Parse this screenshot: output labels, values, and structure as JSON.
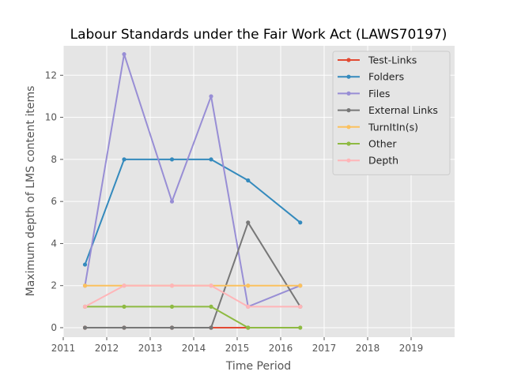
{
  "chart_data": {
    "type": "line",
    "title": "Labour Standards under the Fair Work Act (LAWS70197)",
    "xlabel": "Time Period",
    "ylabel": "Maximum depth of LMS content items",
    "xlim": [
      2011,
      2020
    ],
    "ylim": [
      -0.45,
      13.4
    ],
    "xticks": [
      2011,
      2012,
      2013,
      2014,
      2015,
      2016,
      2017,
      2018,
      2019
    ],
    "yticks": [
      0,
      2,
      4,
      6,
      8,
      10,
      12
    ],
    "grid": true,
    "legend_position": "top-right",
    "x": [
      2011.5,
      2012.4,
      2013.5,
      2014.4,
      2015.25,
      2016.45
    ],
    "series": [
      {
        "name": "Test-Links",
        "color": "#e24a33",
        "x": [
          2011.5,
          2012.4,
          2013.5,
          2014.4,
          2015.25
        ],
        "values": [
          0,
          0,
          0,
          0,
          0
        ]
      },
      {
        "name": "Folders",
        "color": "#348abd",
        "values": [
          3,
          8,
          8,
          8,
          7,
          5
        ]
      },
      {
        "name": "Files",
        "color": "#988ed5",
        "values": [
          2,
          13,
          6,
          11,
          1,
          2
        ]
      },
      {
        "name": "External Links",
        "color": "#777777",
        "values": [
          0,
          0,
          0,
          0,
          5,
          1
        ]
      },
      {
        "name": "TurnItIn(s)",
        "color": "#fbc15e",
        "values": [
          2,
          2,
          2,
          2,
          2,
          2
        ]
      },
      {
        "name": "Other",
        "color": "#8eba42",
        "values": [
          1,
          1,
          1,
          1,
          0,
          0
        ]
      },
      {
        "name": "Depth",
        "color": "#ffb5b8",
        "values": [
          1,
          2,
          2,
          2,
          1,
          1
        ]
      }
    ]
  }
}
